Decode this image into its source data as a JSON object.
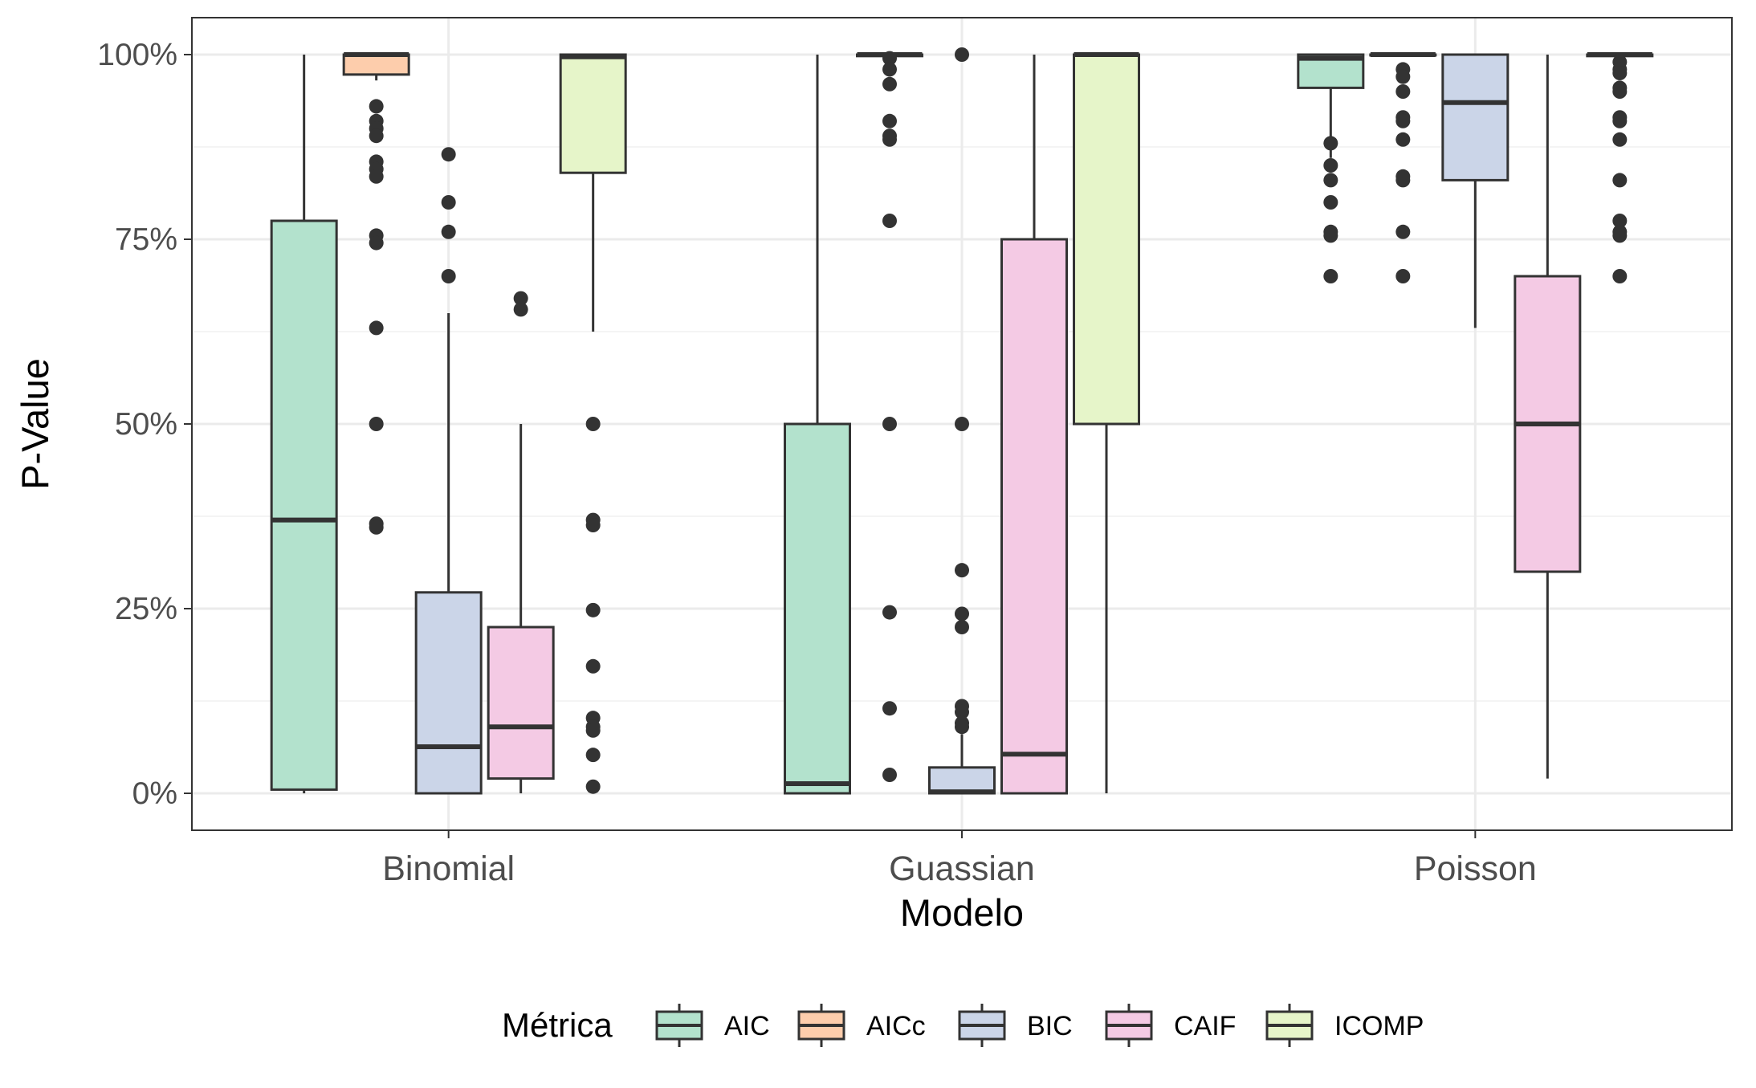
{
  "chart_data": {
    "type": "boxplot",
    "title": "",
    "xlabel": "Modelo",
    "ylabel": "P-Value",
    "ylim": [
      -0.05,
      1.05
    ],
    "y_ticks": [
      {
        "value": 0,
        "label": "0%"
      },
      {
        "value": 0.25,
        "label": "25%"
      },
      {
        "value": 0.5,
        "label": "50%"
      },
      {
        "value": 0.75,
        "label": "75%"
      },
      {
        "value": 1.0,
        "label": "100%"
      }
    ],
    "grid": true,
    "legend_title": "Métrica",
    "legend_position": "bottom",
    "categories": [
      "Binomial",
      "Guassian",
      "Poisson"
    ],
    "series": [
      {
        "name": "AIC",
        "color": "#b3e2cd",
        "boxes": [
          {
            "whisker_low": 0.0,
            "q1": 0.005,
            "median": 0.37,
            "q3": 0.775,
            "whisker_high": 1.0,
            "outliers": []
          },
          {
            "whisker_low": 0.0,
            "q1": 0.0,
            "median": 0.013,
            "q3": 0.5,
            "whisker_high": 1.0,
            "outliers": []
          },
          {
            "whisker_low": 0.86,
            "q1": 0.955,
            "median": 0.995,
            "q3": 1.0,
            "whisker_high": 1.0,
            "outliers": [
              0.88,
              0.85,
              0.83,
              0.8,
              0.76,
              0.755,
              0.7
            ]
          }
        ]
      },
      {
        "name": "AICc",
        "color": "#fdcdac",
        "boxes": [
          {
            "whisker_low": 0.965,
            "q1": 0.973,
            "median": 1.0,
            "q3": 1.0,
            "whisker_high": 1.0,
            "outliers": [
              0.93,
              0.91,
              0.9,
              0.89,
              0.855,
              0.845,
              0.835,
              0.755,
              0.745,
              0.63,
              0.5,
              0.365,
              0.36
            ]
          },
          {
            "whisker_low": 0.997,
            "q1": 0.998,
            "median": 1.0,
            "q3": 1.0,
            "whisker_high": 1.0,
            "outliers": [
              0.995,
              0.98,
              0.96,
              0.91,
              0.89,
              0.885,
              0.775,
              0.5,
              0.245,
              0.115,
              0.025
            ]
          },
          {
            "whisker_low": 0.999,
            "q1": 0.999,
            "median": 1.0,
            "q3": 1.0,
            "whisker_high": 1.0,
            "outliers": [
              0.98,
              0.97,
              0.95,
              0.915,
              0.91,
              0.885,
              0.835,
              0.83,
              0.76,
              0.7
            ]
          }
        ]
      },
      {
        "name": "BIC",
        "color": "#cbd5e8",
        "boxes": [
          {
            "whisker_low": 0.0,
            "q1": 0.0,
            "median": 0.063,
            "q3": 0.272,
            "whisker_high": 0.65,
            "outliers": [
              0.865,
              0.8,
              0.76,
              0.7
            ]
          },
          {
            "whisker_low": 0.0,
            "q1": 0.0,
            "median": 0.002,
            "q3": 0.035,
            "whisker_high": 0.08,
            "outliers": [
              1.0,
              0.5,
              0.302,
              0.243,
              0.225,
              0.118,
              0.11,
              0.095,
              0.09
            ]
          },
          {
            "whisker_low": 0.63,
            "q1": 0.83,
            "median": 0.935,
            "q3": 1.0,
            "whisker_high": 1.0,
            "outliers": []
          }
        ]
      },
      {
        "name": "CAIF",
        "color": "#f4cae4",
        "boxes": [
          {
            "whisker_low": 0.0,
            "q1": 0.02,
            "median": 0.09,
            "q3": 0.225,
            "whisker_high": 0.5,
            "outliers": [
              0.67,
              0.655
            ]
          },
          {
            "whisker_low": 0.0,
            "q1": 0.0,
            "median": 0.053,
            "q3": 0.75,
            "whisker_high": 1.0,
            "outliers": []
          },
          {
            "whisker_low": 0.02,
            "q1": 0.3,
            "median": 0.5,
            "q3": 0.7,
            "whisker_high": 1.0,
            "outliers": []
          }
        ]
      },
      {
        "name": "ICOMP",
        "color": "#e6f5c9",
        "boxes": [
          {
            "whisker_low": 0.625,
            "q1": 0.84,
            "median": 0.997,
            "q3": 1.0,
            "whisker_high": 1.0,
            "outliers": [
              0.5,
              0.37,
              0.363,
              0.248,
              0.172,
              0.102,
              0.09,
              0.085,
              0.052,
              0.009
            ]
          },
          {
            "whisker_low": 0.0,
            "q1": 0.5,
            "median": 1.0,
            "q3": 1.0,
            "whisker_high": 1.0,
            "outliers": []
          },
          {
            "whisker_low": 0.997,
            "q1": 0.998,
            "median": 1.0,
            "q3": 1.0,
            "whisker_high": 1.0,
            "outliers": [
              0.99,
              0.98,
              0.975,
              0.955,
              0.95,
              0.915,
              0.91,
              0.885,
              0.83,
              0.775,
              0.76,
              0.755,
              0.7
            ]
          }
        ]
      }
    ]
  }
}
